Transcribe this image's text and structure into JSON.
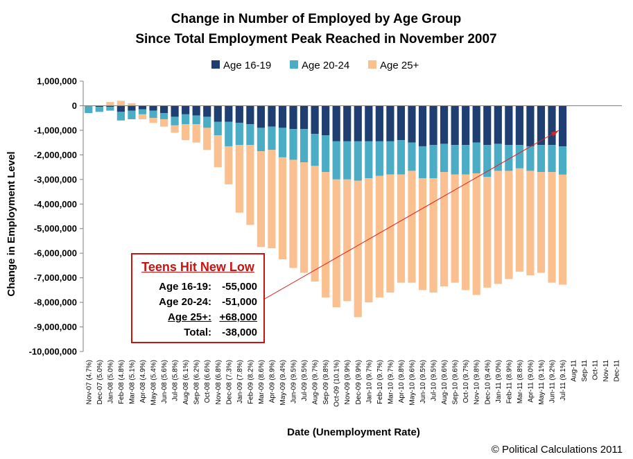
{
  "chart_data": {
    "type": "bar",
    "stacked": true,
    "title": [
      "Change in Number of Employed by Age Group",
      "Since Total Employment Peak Reached in November 2007"
    ],
    "xlabel": "Date (Unemployment Rate)",
    "ylabel": "Change in Employment Level",
    "ylim": [
      -10000000,
      1000000
    ],
    "yticks": [
      1000000,
      0,
      -1000000,
      -2000000,
      -3000000,
      -4000000,
      -5000000,
      -6000000,
      -7000000,
      -8000000,
      -9000000,
      -10000000
    ],
    "ytick_labels": [
      "1,000,000",
      "0",
      "-1,000,000",
      "-2,000,000",
      "-3,000,000",
      "-4,000,000",
      "-5,000,000",
      "-6,000,000",
      "-7,000,000",
      "-8,000,000",
      "-9,000,000",
      "-10,000,000"
    ],
    "legend_position": "top",
    "categories": [
      "Nov-07 (4.7%)",
      "Dec-07 (5.0%)",
      "Jan-08 (5.0%)",
      "Feb-08 (4.8%)",
      "Mar-08 (5.1%)",
      "Apr-08 (4.9%)",
      "May-08 (5.4%)",
      "Jun-08 (5.6%)",
      "Jul-08 (5.8%)",
      "Aug-08 (6.1%)",
      "Sep-08 (6.2%)",
      "Oct-08 (6.6%)",
      "Nov-08 (6.8%)",
      "Dec-08 (7.3%)",
      "Jan-09 (7.8%)",
      "Feb-09 (8.2%)",
      "Mar-09 (8.6%)",
      "Apr-09 (8.9%)",
      "May-09 (9.4%)",
      "Jun-09 (9.5%)",
      "Jul-09 (9.5%)",
      "Aug-09 (9.7%)",
      "Sep-09 (9.8%)",
      "Oct-09 (10.1%)",
      "Nov-09 (9.9%)",
      "Dec-09 (9.9%)",
      "Jan-10 (9.7%)",
      "Feb-10 (9.7%)",
      "Mar-10 (9.7%)",
      "Apr-10 (9.8%)",
      "May-10 (9.6%)",
      "Jun-10 (9.5%)",
      "Jul-10 (9.5%)",
      "Aug-10 (9.6%)",
      "Sep-10 (9.6%)",
      "Oct-10 (9.7%)",
      "Nov-10 (9.8%)",
      "Dec-10 (9.4%)",
      "Jan-11 (9.0%)",
      "Feb-11 (8.9%)",
      "Mar-11 (8.8%)",
      "Apr-11 (9.0%)",
      "May-11 (9.1%)",
      "Jun-11 (9.2%)",
      "Jul-11 (9.1%)",
      "Aug-11",
      "Sep-11",
      "Oct-11",
      "Nov-11",
      "Dec-11"
    ],
    "series": [
      {
        "name": "Age 16-19",
        "color": "#1f3f72",
        "values": [
          0,
          -50000,
          -50000,
          -250000,
          -200000,
          -150000,
          -200000,
          -300000,
          -450000,
          -350000,
          -400000,
          -450000,
          -650000,
          -650000,
          -700000,
          -750000,
          -900000,
          -850000,
          -900000,
          -950000,
          -950000,
          -1150000,
          -1200000,
          -1450000,
          -1450000,
          -1450000,
          -1450000,
          -1450000,
          -1450000,
          -1400000,
          -1500000,
          -1650000,
          -1600000,
          -1550000,
          -1600000,
          -1600000,
          -1500000,
          -1600000,
          -1550000,
          -1600000,
          -1600000,
          -1650000,
          -1600000,
          -1600000,
          -1655000,
          null,
          null,
          null,
          null,
          null
        ]
      },
      {
        "name": "Age 20-24",
        "color": "#4bacc6",
        "values": [
          -300000,
          -200000,
          -150000,
          -350000,
          -350000,
          -200000,
          -300000,
          -250000,
          -350000,
          -400000,
          -350000,
          -450000,
          -550000,
          -1000000,
          -900000,
          -850000,
          -950000,
          -950000,
          -1200000,
          -1250000,
          -1350000,
          -1300000,
          -1500000,
          -1550000,
          -1550000,
          -1600000,
          -1500000,
          -1400000,
          -1350000,
          -1400000,
          -1150000,
          -1300000,
          -1350000,
          -1150000,
          -1200000,
          -1200000,
          -1250000,
          -1300000,
          -1100000,
          -1050000,
          -950000,
          -1000000,
          -1100000,
          -1100000,
          -1150000,
          null,
          null,
          null,
          null,
          null
        ]
      },
      {
        "name": "Age 25+",
        "color": "#fac090",
        "values": [
          0,
          0,
          150000,
          200000,
          100000,
          -200000,
          -200000,
          -300000,
          -300000,
          -650000,
          -750000,
          -900000,
          -1300000,
          -1550000,
          -2750000,
          -3250000,
          -3900000,
          -4000000,
          -4150000,
          -4400000,
          -4500000,
          -4700000,
          -5100000,
          -5200000,
          -4950000,
          -5550000,
          -5050000,
          -4950000,
          -4800000,
          -4400000,
          -4550000,
          -4550000,
          -4650000,
          -4650000,
          -4400000,
          -4700000,
          -4950000,
          -4500000,
          -4600000,
          -4400000,
          -4200000,
          -4250000,
          -4100000,
          -4500000,
          -4475000,
          null,
          null,
          null,
          null,
          null
        ]
      }
    ]
  },
  "legend": [
    {
      "label": "Age 16-19",
      "color": "#1f3f72"
    },
    {
      "label": "Age 20-24",
      "color": "#4bacc6"
    },
    {
      "label": "Age 25+",
      "color": "#fac090"
    }
  ],
  "callout": {
    "title": "Teens Hit New Low",
    "rows": [
      {
        "label": "Age 16-19:",
        "value": "-55,000"
      },
      {
        "label": "Age 20-24:",
        "value": "-51,000"
      },
      {
        "label": "Age 25+:",
        "value": "+68,000"
      },
      {
        "label": "Total:",
        "value": "-38,000"
      }
    ]
  },
  "credit": "© Political Calculations 2011"
}
